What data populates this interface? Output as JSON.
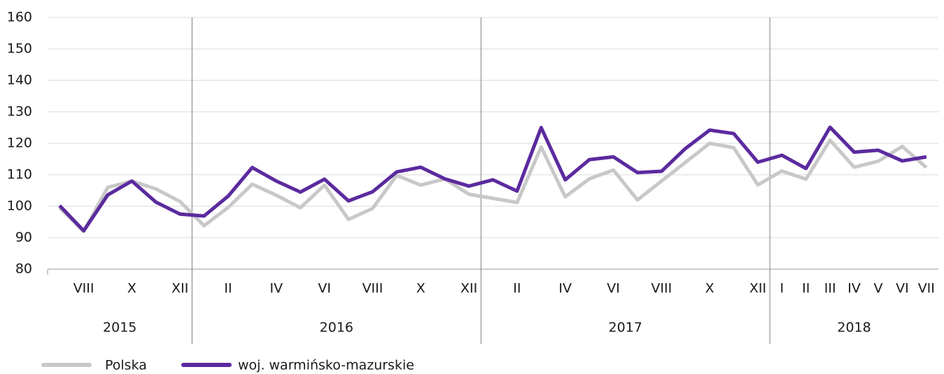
{
  "chart_data": {
    "type": "line",
    "categories": [
      null,
      "VIII",
      null,
      "X",
      null,
      "XII",
      null,
      "II",
      null,
      "IV",
      null,
      "VI",
      null,
      "VIII",
      null,
      "X",
      null,
      "XII",
      null,
      "II",
      null,
      "IV",
      null,
      "VI",
      null,
      "VIII",
      null,
      "X",
      null,
      "XII",
      "I",
      "II",
      "III",
      "IV",
      "V",
      "VI",
      "VII"
    ],
    "year_groups": [
      {
        "label": "2015",
        "span": 6
      },
      {
        "label": "2016",
        "span": 12
      },
      {
        "label": "2017",
        "span": 12
      },
      {
        "label": "2018",
        "span": 7
      }
    ],
    "series": [
      {
        "name": "Polska",
        "color": "#c8c8c8",
        "values": [
          99.5,
          92,
          106,
          108,
          105.5,
          101.5,
          93.8,
          99.6,
          107,
          103.5,
          99.5,
          106.7,
          95.8,
          99.3,
          109.8,
          106.7,
          108.7,
          103.8,
          102.5,
          101.2,
          118.8,
          103,
          108.7,
          111.5,
          102,
          108,
          114,
          120,
          118.6,
          106.8,
          111.2,
          108.6,
          121,
          112.4,
          114.3,
          119,
          112.3
        ]
      },
      {
        "name": "woj. warmińsko-mazurskie",
        "color": "#5b2a9e",
        "values": [
          100.2,
          92.2,
          103.6,
          108,
          101.3,
          97.5,
          96.9,
          103.2,
          112.3,
          108,
          104.5,
          108.6,
          101.7,
          104.6,
          110.9,
          112.4,
          108.7,
          106.4,
          108.4,
          104.8,
          125,
          108.4,
          114.8,
          115.7,
          110.7,
          111.1,
          118.4,
          124.2,
          123.1,
          114,
          116.2,
          112,
          125.1,
          117.2,
          117.8,
          114.4,
          115.7
        ]
      }
    ],
    "ylim": [
      80,
      160
    ],
    "yticks": [
      80,
      90,
      100,
      110,
      120,
      130,
      140,
      150,
      160
    ],
    "grid": true
  }
}
